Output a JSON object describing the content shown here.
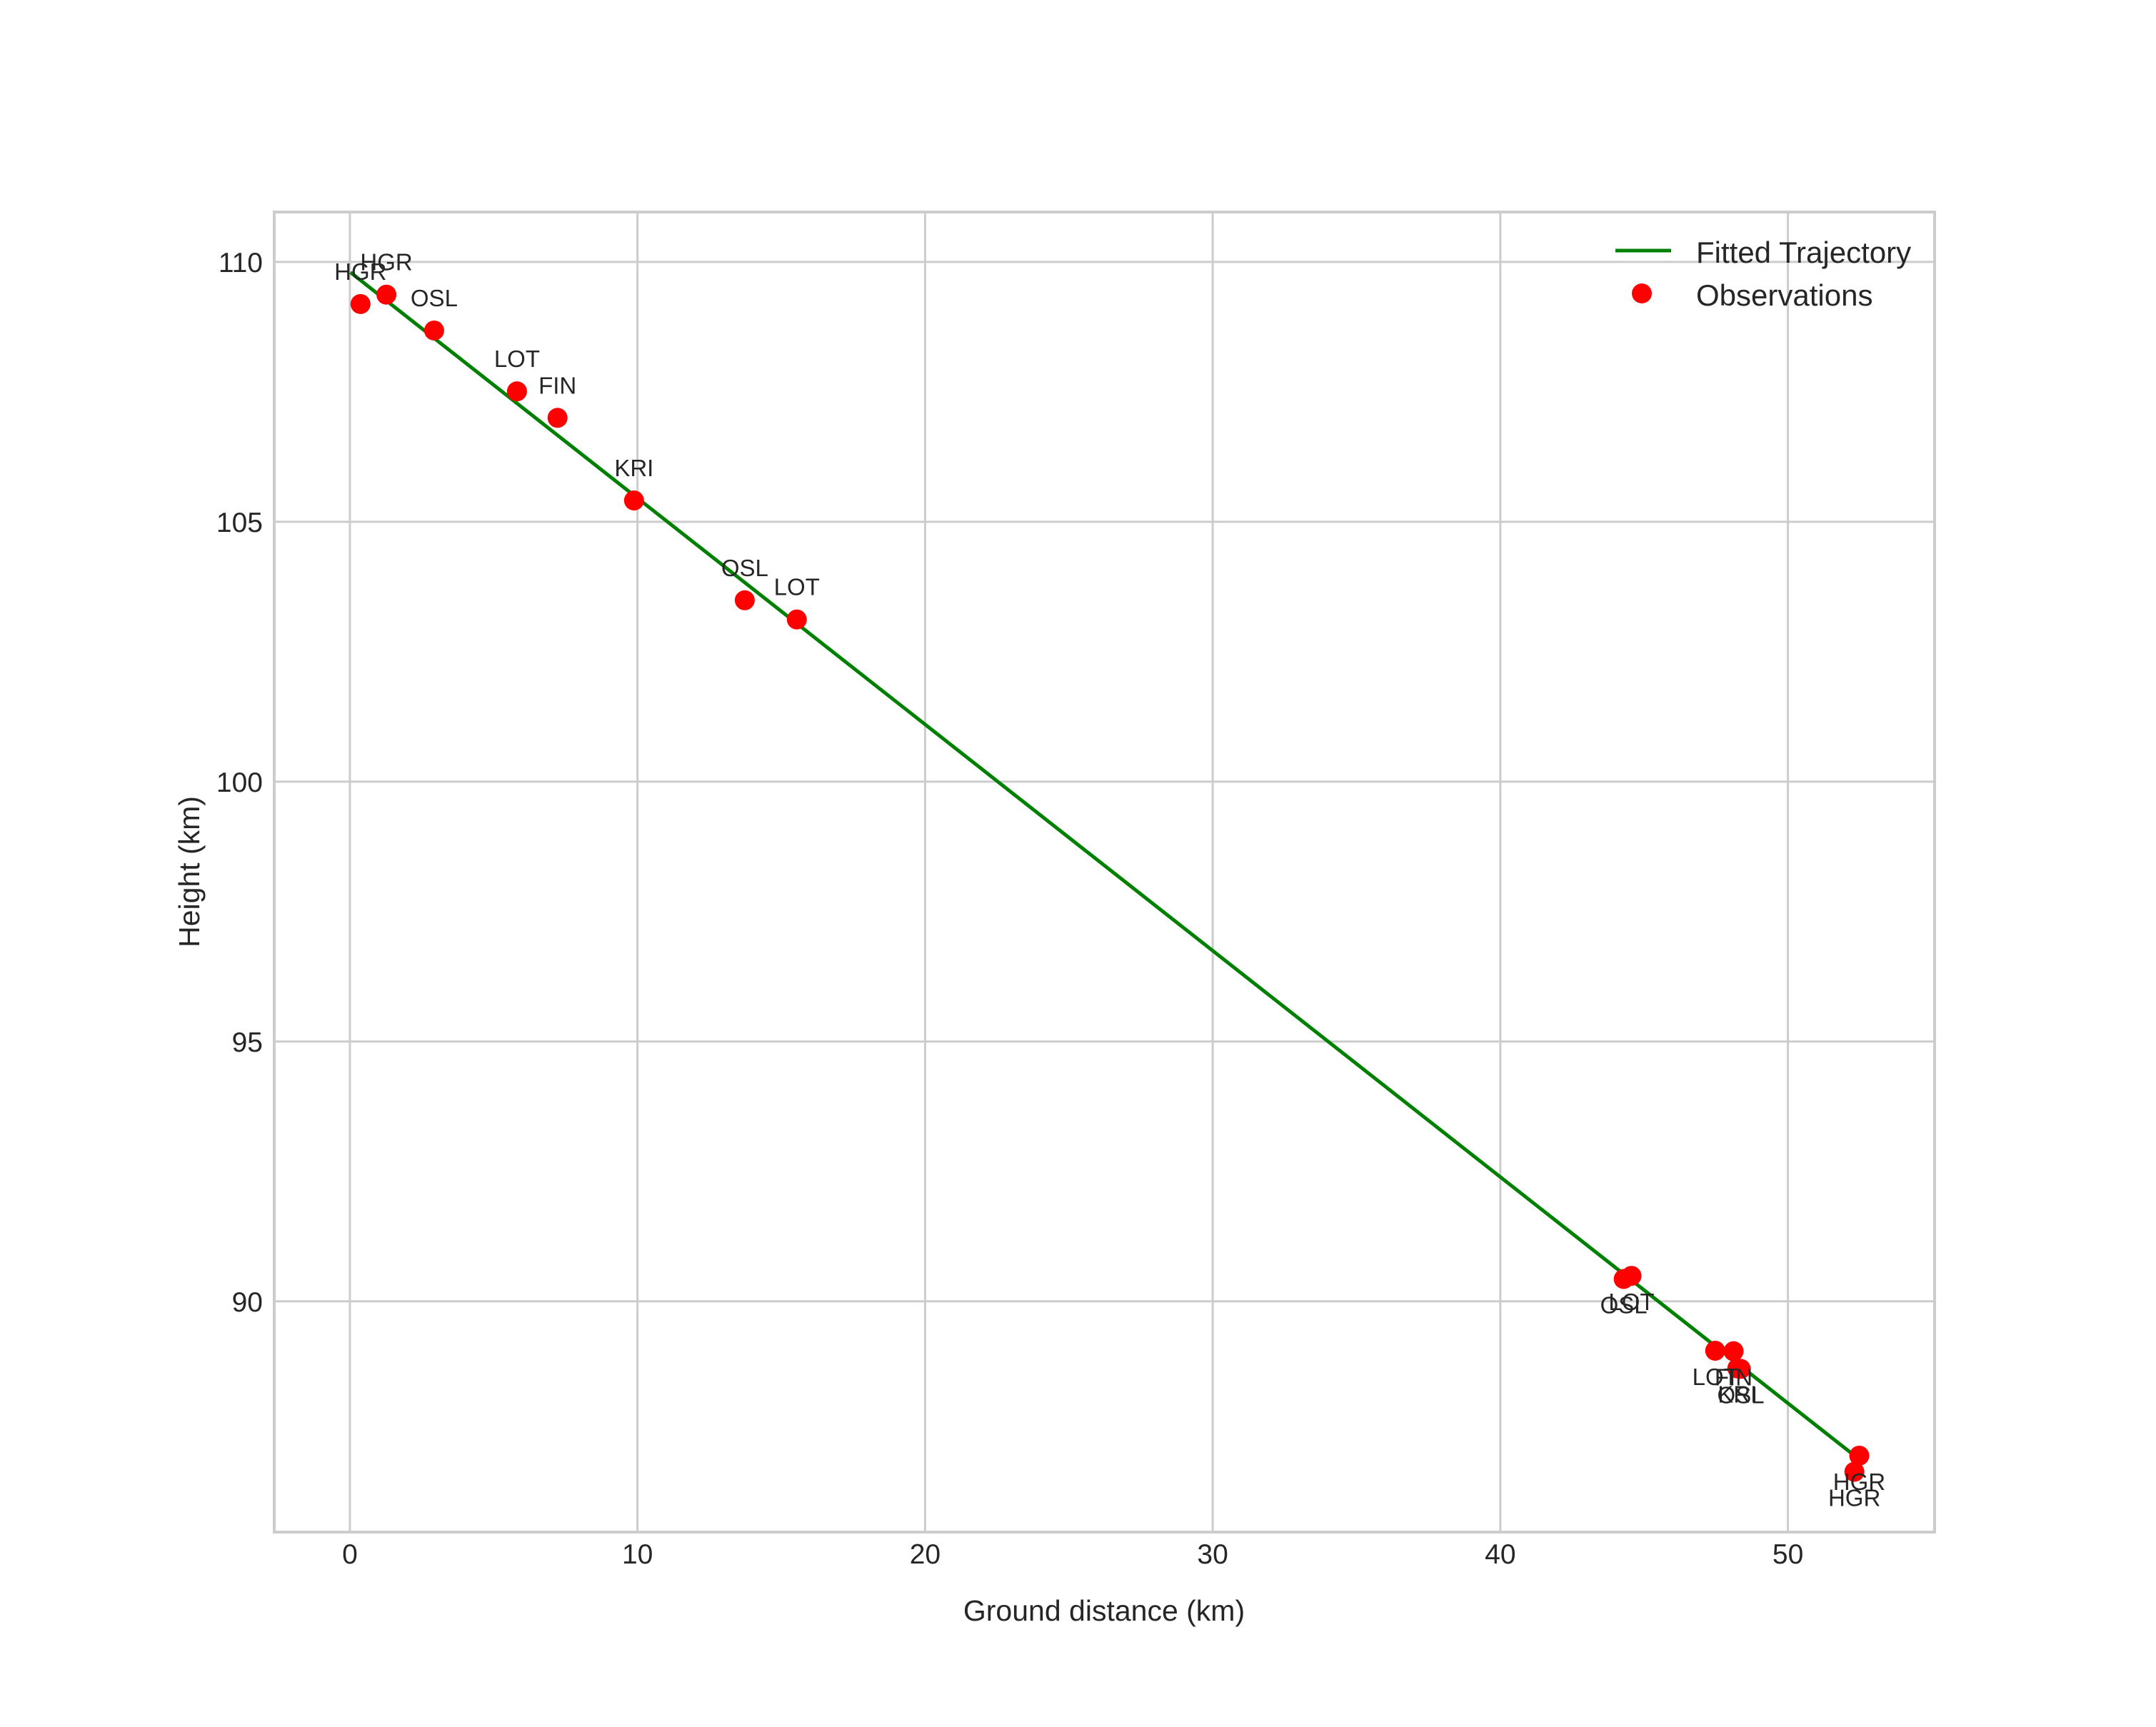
{
  "chart_data": {
    "type": "line+scatter",
    "title": "",
    "xlabel": "Ground distance (km)",
    "ylabel": "Height (km)",
    "xlim": [
      -2.63,
      55.1
    ],
    "ylim": [
      85.56,
      110.96
    ],
    "grid": true,
    "legend_position": "upper right",
    "x_ticks": [
      0,
      10,
      20,
      30,
      40,
      50
    ],
    "y_ticks": [
      90,
      95,
      100,
      105,
      110
    ],
    "legend": [
      {
        "label": "Fitted Trajectory",
        "type": "line",
        "color": "#008000"
      },
      {
        "label": "Observations",
        "type": "marker",
        "color": "#ff0000"
      }
    ],
    "series": [
      {
        "name": "Fitted Trajectory",
        "type": "line",
        "color": "#008000",
        "x": [
          0.02,
          52.18
        ],
        "y": [
          109.8,
          87.09
        ]
      },
      {
        "name": "Observations",
        "type": "scatter",
        "color": "#ff0000",
        "points": [
          {
            "station": "HGR",
            "x": 0.37,
            "y": 109.19,
            "label_pos": "above"
          },
          {
            "station": "HGR",
            "x": 1.27,
            "y": 109.37,
            "label_pos": "above"
          },
          {
            "station": "OSL",
            "x": 2.93,
            "y": 108.68,
            "label_pos": "above"
          },
          {
            "station": "LOT",
            "x": 5.81,
            "y": 107.51,
            "label_pos": "above"
          },
          {
            "station": "FIN",
            "x": 7.22,
            "y": 107.0,
            "label_pos": "above"
          },
          {
            "station": "KRI",
            "x": 9.88,
            "y": 105.41,
            "label_pos": "above"
          },
          {
            "station": "OSL",
            "x": 13.73,
            "y": 103.49,
            "label_pos": "above"
          },
          {
            "station": "LOT",
            "x": 15.54,
            "y": 103.12,
            "label_pos": "above"
          },
          {
            "station": "OSL",
            "x": 44.29,
            "y": 90.43,
            "label_pos": "below"
          },
          {
            "station": "LOT",
            "x": 44.56,
            "y": 90.49,
            "label_pos": "below"
          },
          {
            "station": "LOT",
            "x": 47.47,
            "y": 89.05,
            "label_pos": "below"
          },
          {
            "station": "FIN",
            "x": 48.11,
            "y": 89.04,
            "label_pos": "below"
          },
          {
            "station": "KRI",
            "x": 48.24,
            "y": 88.71,
            "label_pos": "below"
          },
          {
            "station": "OSL",
            "x": 48.36,
            "y": 88.7,
            "label_pos": "below"
          },
          {
            "station": "HGR",
            "x": 52.48,
            "y": 87.03,
            "label_pos": "below"
          },
          {
            "station": "HGR",
            "x": 52.31,
            "y": 86.72,
            "label_pos": "below"
          }
        ]
      }
    ]
  },
  "style": {
    "grid_color": "#cccccc",
    "text_color": "#262626",
    "background": "#ffffff",
    "line_color": "#008000",
    "marker_color": "#ff0000"
  }
}
